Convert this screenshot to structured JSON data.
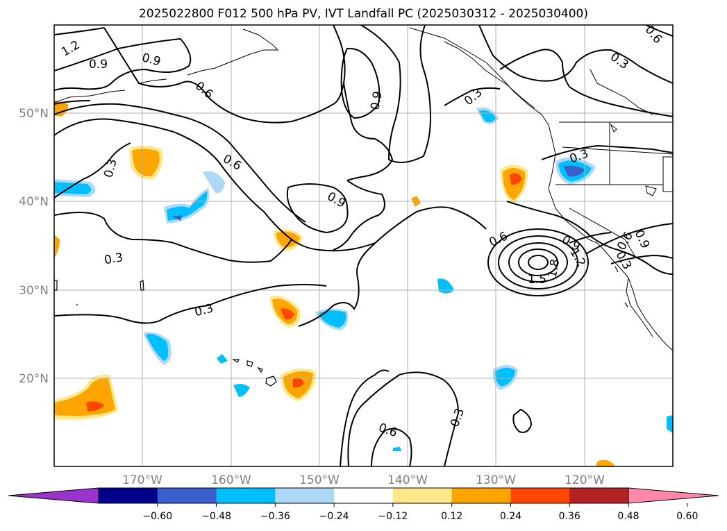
{
  "title": "2025022800 F012 500 hPa PV, IVT Landfall PC (2025030312 - 2025030400)",
  "map": {
    "lon_range": [
      -180,
      -110
    ],
    "lat_range": [
      10,
      60
    ],
    "lat_ticks": [
      {
        "value": 20,
        "label": "20°N"
      },
      {
        "value": 30,
        "label": "30°N"
      },
      {
        "value": 40,
        "label": "40°N"
      },
      {
        "value": 50,
        "label": "50°N"
      }
    ],
    "lon_ticks": [
      {
        "value": -170,
        "label": "170°W"
      },
      {
        "value": -160,
        "label": "160°W"
      },
      {
        "value": -150,
        "label": "150°W"
      },
      {
        "value": -140,
        "label": "140°W"
      },
      {
        "value": -130,
        "label": "130°W"
      },
      {
        "value": -120,
        "label": "120°W"
      }
    ],
    "tick_label_color": "#808080",
    "grid": true,
    "contour_labels": [
      "1.2",
      "0.9",
      "0.9",
      "0.6",
      "0.9",
      "0.3",
      "0.6",
      "0.3",
      "0.9",
      "0.3",
      "0.3",
      "0.6",
      "0.3",
      "0.6",
      "0.3",
      "0.9",
      "0.6",
      "0.9",
      "1.2",
      "1.5",
      "1.8",
      "0.3",
      "0.3",
      "0.6"
    ]
  },
  "colorbar": {
    "ticks": [
      "−0.60",
      "−0.48",
      "−0.36",
      "−0.24",
      "−0.12",
      "0.12",
      "0.24",
      "0.36",
      "0.48",
      "0.60"
    ],
    "colors": [
      "#9933cc",
      "#00008b",
      "#3a5fcd",
      "#00bfff",
      "#add8f7",
      "#ffffff",
      "#ffe88a",
      "#ffa500",
      "#ff4500",
      "#b22222",
      "#ff88aa"
    ],
    "extend": "both"
  }
}
